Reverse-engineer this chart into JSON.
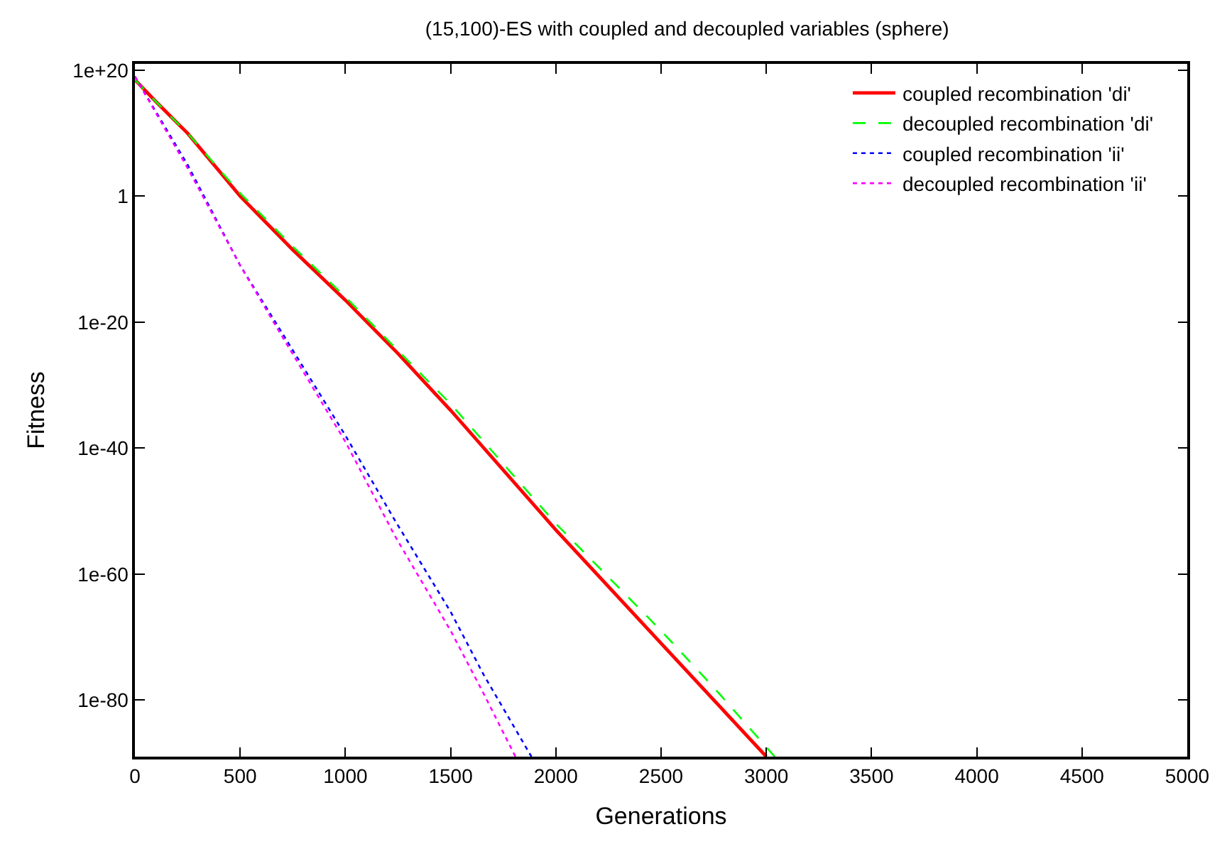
{
  "chart_data": {
    "type": "line",
    "title": "(15,100)-ES with coupled and decoupled variables (sphere)",
    "xlabel": "Generations",
    "ylabel": "Fitness",
    "log": "y",
    "legend": "top right",
    "marker": "none",
    "xlim": [
      0,
      5000
    ],
    "xticks": [
      0,
      500,
      1000,
      1500,
      2000,
      2500,
      3000,
      3500,
      4000,
      4500,
      5000
    ],
    "ylim": [
      1e-89,
      1e+21
    ],
    "yticks": [
      {
        "value": 1e+20,
        "label": "1e+20"
      },
      1,
      {
        "value": 1e-20,
        "label": "1e-20"
      },
      {
        "value": 1e-40,
        "label": "1e-40"
      },
      {
        "value": 1e-60,
        "label": "1e-60"
      },
      {
        "value": 1e-80,
        "label": "1e-80"
      }
    ],
    "series": [
      {
        "name": "coupled recombination 'di'",
        "color": "#ff0000",
        "line_style": "solid",
        "x": [
          0,
          100,
          250,
          500,
          750,
          1000,
          1250,
          1500,
          2000,
          2500,
          2750,
          3000
        ],
        "values": [
          3e+18,
          1000000000000000.0,
          10000000000.0,
          1,
          3e-09,
          3e-17,
          1e-25,
          1e-34,
          1e-53,
          1e-71,
          1e-80,
          1e-89
        ]
      },
      {
        "name": "decoupled recombination 'di'",
        "color": "#00ff00",
        "line_style": "dashed",
        "x": [
          0,
          100,
          250,
          500,
          750,
          1000,
          1250,
          1500,
          2000,
          2500,
          2750,
          3040
        ],
        "values": [
          3e+18,
          1000000000000000.0,
          10000000000.0,
          3,
          1e-08,
          1e-16,
          3e-25,
          1e-33,
          1e-52,
          1e-69,
          1e-78,
          1e-89
        ]
      },
      {
        "name": "coupled recombination 'ii'",
        "color": "#0000ff",
        "line_style": "dotted",
        "x": [
          0,
          250,
          500,
          686,
          1000,
          1236,
          1500,
          1657,
          1884
        ],
        "values": [
          1e+19,
          100000.0,
          1e-11,
          1e-21,
          1e-38,
          3e-52,
          1e-66,
          1e-76,
          1e-89
        ]
      },
      {
        "name": "decoupled recombination 'ii'",
        "color": "#ff00ff",
        "line_style": "dotted",
        "x": [
          0,
          250,
          500,
          686,
          1000,
          1236,
          1500,
          1657,
          1808
        ],
        "values": [
          1e+19,
          30000.0,
          1e-11,
          3e-22,
          1e-39,
          1e-54,
          1e-69,
          1e-79,
          1e-89
        ]
      }
    ]
  }
}
